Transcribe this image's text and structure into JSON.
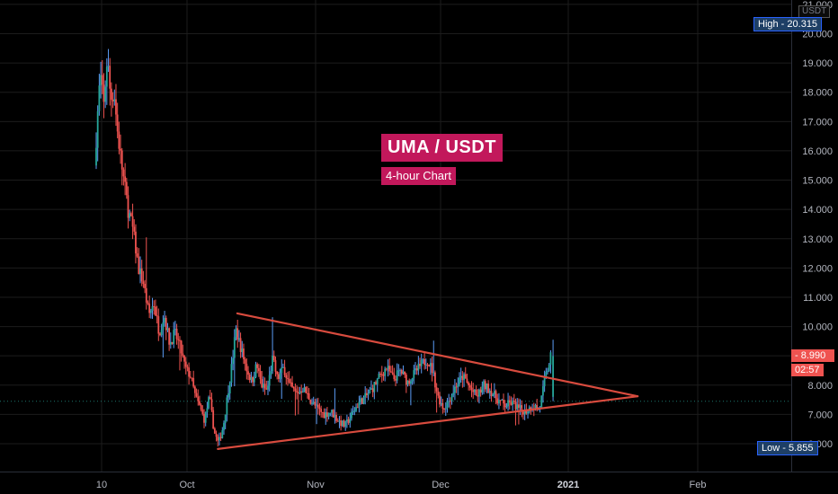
{
  "chart_data": {
    "type": "candlestick",
    "symbol": "UMA / USDT",
    "interval": "4-hour Chart",
    "currency": "USDT",
    "y_axis": {
      "range": [
        5.6,
        21.0
      ],
      "ticks": [
        "21.000",
        "20.000",
        "19.000",
        "18.000",
        "17.000",
        "16.000",
        "15.000",
        "14.000",
        "13.000",
        "12.000",
        "11.000",
        "10.000",
        "9.000",
        "8.000",
        "7.000",
        "6.000"
      ]
    },
    "x_axis": {
      "labels": [
        {
          "text": "10",
          "bold": false
        },
        {
          "text": "Oct",
          "bold": false
        },
        {
          "text": "Nov",
          "bold": false
        },
        {
          "text": "Dec",
          "bold": false
        },
        {
          "text": "2021",
          "bold": true
        },
        {
          "text": "Feb",
          "bold": false
        }
      ]
    },
    "stats": {
      "high_label": "High",
      "high_value": "20.315",
      "low_label": "Low",
      "low_value": "5.855",
      "last_price": "8.990",
      "countdown": "02:57",
      "reference_line": 7.45
    },
    "price_path": [
      [
        0,
        15.5
      ],
      [
        0.004,
        17.2
      ],
      [
        0.008,
        18.6
      ],
      [
        0.013,
        17.5
      ],
      [
        0.018,
        19.2
      ],
      [
        0.023,
        17.8
      ],
      [
        0.028,
        18.0
      ],
      [
        0.033,
        16.6
      ],
      [
        0.04,
        15.3
      ],
      [
        0.048,
        14.0
      ],
      [
        0.055,
        13.3
      ],
      [
        0.063,
        12.0
      ],
      [
        0.07,
        11.5
      ],
      [
        0.078,
        10.4
      ],
      [
        0.085,
        10.8
      ],
      [
        0.093,
        9.8
      ],
      [
        0.1,
        10.4
      ],
      [
        0.108,
        9.4
      ],
      [
        0.115,
        9.8
      ],
      [
        0.123,
        9.3
      ],
      [
        0.13,
        8.6
      ],
      [
        0.138,
        8.3
      ],
      [
        0.145,
        7.6
      ],
      [
        0.152,
        7.2
      ],
      [
        0.158,
        6.8
      ],
      [
        0.165,
        7.6
      ],
      [
        0.172,
        6.4
      ],
      [
        0.178,
        6.0
      ],
      [
        0.185,
        6.6
      ],
      [
        0.192,
        7.8
      ],
      [
        0.198,
        8.8
      ],
      [
        0.203,
        9.9
      ],
      [
        0.21,
        9.3
      ],
      [
        0.218,
        8.6
      ],
      [
        0.226,
        8.1
      ],
      [
        0.233,
        8.7
      ],
      [
        0.24,
        8.0
      ],
      [
        0.248,
        7.8
      ],
      [
        0.256,
        8.9
      ],
      [
        0.263,
        8.2
      ],
      [
        0.272,
        8.6
      ],
      [
        0.28,
        8.0
      ],
      [
        0.29,
        7.7
      ],
      [
        0.3,
        7.9
      ],
      [
        0.31,
        7.5
      ],
      [
        0.32,
        7.2
      ],
      [
        0.33,
        7.0
      ],
      [
        0.34,
        7.1
      ],
      [
        0.35,
        6.8
      ],
      [
        0.36,
        6.6
      ],
      [
        0.37,
        7.0
      ],
      [
        0.38,
        7.4
      ],
      [
        0.39,
        7.6
      ],
      [
        0.4,
        7.9
      ],
      [
        0.41,
        8.3
      ],
      [
        0.42,
        8.6
      ],
      [
        0.43,
        8.2
      ],
      [
        0.44,
        8.5
      ],
      [
        0.45,
        8.1
      ],
      [
        0.46,
        8.4
      ],
      [
        0.47,
        8.7
      ],
      [
        0.478,
        8.9
      ],
      [
        0.486,
        8.5
      ],
      [
        0.494,
        7.6
      ],
      [
        0.502,
        7.2
      ],
      [
        0.51,
        7.5
      ],
      [
        0.52,
        8.0
      ],
      [
        0.53,
        8.3
      ],
      [
        0.54,
        7.9
      ],
      [
        0.55,
        7.6
      ],
      [
        0.56,
        8.0
      ],
      [
        0.57,
        7.8
      ],
      [
        0.58,
        7.5
      ],
      [
        0.59,
        7.3
      ],
      [
        0.6,
        7.4
      ],
      [
        0.61,
        7.2
      ],
      [
        0.62,
        7.1
      ],
      [
        0.63,
        7.3
      ],
      [
        0.64,
        7.2
      ],
      [
        0.648,
        8.2
      ],
      [
        0.656,
        8.99
      ]
    ],
    "triangle": {
      "upper": [
        [
          0.203,
          10.45
        ],
        [
          0.779,
          7.62
        ]
      ],
      "lower": [
        [
          0.175,
          5.82
        ],
        [
          0.779,
          7.62
        ]
      ]
    }
  },
  "colors": {
    "up": "#26a69a",
    "down": "#ef5350",
    "wick_up": "#5b9cf6",
    "triangle": "#d84b3e",
    "grid": "#1c1c1c",
    "axis_text": "#b2b5be",
    "accent": "#c2185b"
  }
}
